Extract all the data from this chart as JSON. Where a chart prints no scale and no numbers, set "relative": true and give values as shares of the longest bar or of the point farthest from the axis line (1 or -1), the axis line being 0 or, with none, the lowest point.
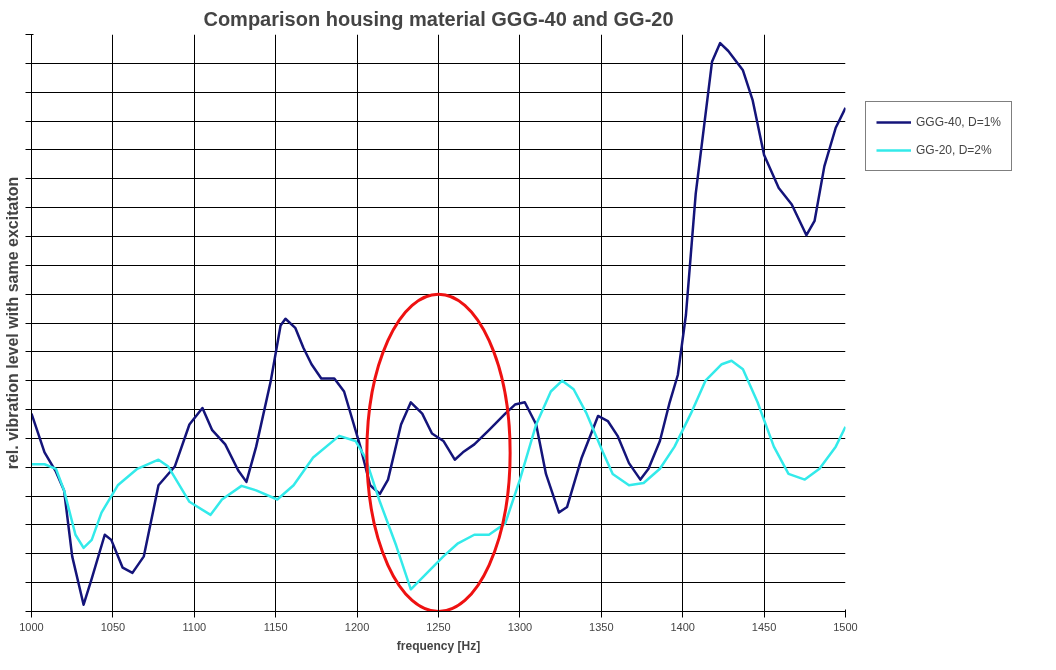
{
  "chart_data": {
    "type": "line",
    "title": "Comparison housing material GGG-40 and GG-20",
    "xlabel": "frequency [Hz]",
    "ylabel": "rel. vibration level with same excitaton",
    "relative": true,
    "xlim": [
      1000,
      1500
    ],
    "xticks": [
      1000,
      1050,
      1100,
      1150,
      1200,
      1250,
      1300,
      1350,
      1400,
      1450,
      1500
    ],
    "grid": true,
    "legend": "right",
    "marker": "none",
    "line_style": "solid",
    "series": [
      {
        "name": "GGG-40, D=1%",
        "color": "#14147a",
        "x": [
          1000,
          1008,
          1015,
          1020,
          1025,
          1032,
          1037,
          1045,
          1049,
          1056,
          1062,
          1069,
          1078,
          1088,
          1097,
          1105,
          1111,
          1119,
          1127,
          1132,
          1138,
          1147,
          1153,
          1156,
          1162,
          1167,
          1172,
          1178,
          1186,
          1192,
          1202,
          1208,
          1214,
          1219,
          1227,
          1233,
          1240,
          1246,
          1253,
          1260,
          1265,
          1272,
          1281,
          1291,
          1297,
          1303,
          1310,
          1316,
          1324,
          1329,
          1338,
          1348,
          1354,
          1360,
          1367,
          1374,
          1379,
          1386,
          1392,
          1397,
          1402,
          1408,
          1418,
          1423,
          1428,
          1437,
          1443,
          1450,
          1459,
          1467,
          1476,
          1481,
          1487,
          1494,
          1500
        ],
        "values": [
          0.348,
          0.28,
          0.246,
          0.213,
          0.097,
          0.012,
          0.058,
          0.135,
          0.126,
          0.077,
          0.068,
          0.097,
          0.222,
          0.255,
          0.329,
          0.358,
          0.319,
          0.294,
          0.248,
          0.228,
          0.29,
          0.406,
          0.503,
          0.515,
          0.499,
          0.464,
          0.435,
          0.41,
          0.41,
          0.387,
          0.29,
          0.222,
          0.207,
          0.232,
          0.329,
          0.368,
          0.348,
          0.313,
          0.3,
          0.267,
          0.28,
          0.294,
          0.319,
          0.348,
          0.364,
          0.368,
          0.329,
          0.242,
          0.174,
          0.184,
          0.271,
          0.344,
          0.335,
          0.309,
          0.261,
          0.232,
          0.251,
          0.3,
          0.368,
          0.416,
          0.522,
          0.735,
          0.967,
          1.0,
          0.986,
          0.952,
          0.899,
          0.803,
          0.745,
          0.716,
          0.662,
          0.687,
          0.783,
          0.851,
          0.886
        ]
      },
      {
        "name": "GG-20, D=2%",
        "color": "#33eaea",
        "x": [
          1000,
          1008,
          1015,
          1020,
          1027,
          1032,
          1037,
          1043,
          1053,
          1065,
          1078,
          1084,
          1097,
          1110,
          1117,
          1129,
          1138,
          1151,
          1161,
          1173,
          1189,
          1199,
          1205,
          1214,
          1224,
          1233,
          1243,
          1253,
          1262,
          1272,
          1281,
          1291,
          1300,
          1310,
          1319,
          1326,
          1333,
          1341,
          1351,
          1357,
          1367,
          1376,
          1386,
          1395,
          1405,
          1414,
          1424,
          1430,
          1437,
          1446,
          1456,
          1465,
          1475,
          1484,
          1494,
          1500
        ],
        "values": [
          0.259,
          0.259,
          0.251,
          0.213,
          0.135,
          0.112,
          0.126,
          0.174,
          0.222,
          0.251,
          0.267,
          0.255,
          0.193,
          0.17,
          0.197,
          0.221,
          0.213,
          0.197,
          0.222,
          0.271,
          0.309,
          0.3,
          0.271,
          0.193,
          0.116,
          0.039,
          0.068,
          0.097,
          0.12,
          0.135,
          0.135,
          0.155,
          0.232,
          0.329,
          0.387,
          0.406,
          0.391,
          0.348,
          0.28,
          0.242,
          0.222,
          0.226,
          0.251,
          0.29,
          0.348,
          0.406,
          0.435,
          0.441,
          0.426,
          0.368,
          0.29,
          0.242,
          0.232,
          0.251,
          0.29,
          0.325
        ]
      }
    ]
  }
}
